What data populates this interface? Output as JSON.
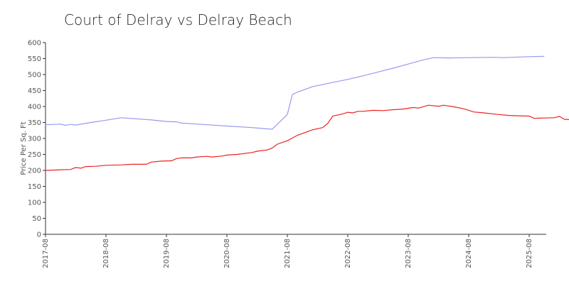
{
  "chart_data": {
    "type": "line",
    "title": "Court of Delray vs Delray Beach",
    "xlabel": "",
    "ylabel": "Price Per Sq. Ft",
    "ylim": [
      0,
      600
    ],
    "yticks": [
      0,
      50,
      100,
      150,
      200,
      250,
      300,
      350,
      400,
      450,
      500,
      550,
      600
    ],
    "x_ticks": [
      "2017-08",
      "2018-08",
      "2019-08",
      "2020-08",
      "2021-08",
      "2022-08",
      "2023-08",
      "2024-08",
      "2025-08"
    ],
    "x_range": [
      "2017-08",
      "2025-12"
    ],
    "grid": false,
    "legend": "none",
    "series": [
      {
        "color": "#9999ee",
        "points": [
          [
            "2017-08",
            343
          ],
          [
            "2017-11",
            345
          ],
          [
            "2017-12",
            341
          ],
          [
            "2018-01",
            344
          ],
          [
            "2018-02",
            342
          ],
          [
            "2018-05",
            350
          ],
          [
            "2018-08",
            357
          ],
          [
            "2018-11",
            365
          ],
          [
            "2019-05",
            358
          ],
          [
            "2019-08",
            353
          ],
          [
            "2019-10",
            352
          ],
          [
            "2019-11",
            348
          ],
          [
            "2020-03",
            344
          ],
          [
            "2020-08",
            339
          ],
          [
            "2021-01",
            334
          ],
          [
            "2021-04",
            330
          ],
          [
            "2021-05",
            329
          ],
          [
            "2021-08",
            375
          ],
          [
            "2021-09",
            438
          ],
          [
            "2021-10",
            445
          ],
          [
            "2022-01",
            462
          ],
          [
            "2022-04",
            472
          ],
          [
            "2022-08",
            485
          ],
          [
            "2022-11",
            496
          ],
          [
            "2023-02",
            508
          ],
          [
            "2023-05",
            520
          ],
          [
            "2023-08",
            533
          ],
          [
            "2023-11",
            546
          ],
          [
            "2024-01",
            553
          ],
          [
            "2024-04",
            552
          ],
          [
            "2024-08",
            553
          ],
          [
            "2025-01",
            554
          ],
          [
            "2025-03",
            553
          ],
          [
            "2025-06",
            555
          ],
          [
            "2025-08",
            556
          ],
          [
            "2025-11",
            557
          ]
        ]
      },
      {
        "color": "#ee2222",
        "points": [
          [
            "2017-08",
            200
          ],
          [
            "2017-11",
            202
          ],
          [
            "2018-01",
            203
          ],
          [
            "2018-02",
            209
          ],
          [
            "2018-03",
            207
          ],
          [
            "2018-04",
            212
          ],
          [
            "2018-06",
            213
          ],
          [
            "2018-08",
            216
          ],
          [
            "2018-11",
            217
          ],
          [
            "2019-01",
            219
          ],
          [
            "2019-04",
            219
          ],
          [
            "2019-05",
            226
          ],
          [
            "2019-07",
            229
          ],
          [
            "2019-09",
            230
          ],
          [
            "2019-10",
            237
          ],
          [
            "2019-11",
            239
          ],
          [
            "2020-01",
            239
          ],
          [
            "2020-02",
            242
          ],
          [
            "2020-04",
            244
          ],
          [
            "2020-05",
            242
          ],
          [
            "2020-07",
            245
          ],
          [
            "2020-08",
            248
          ],
          [
            "2020-10",
            250
          ],
          [
            "2021-01",
            256
          ],
          [
            "2021-02",
            260
          ],
          [
            "2021-04",
            264
          ],
          [
            "2021-05",
            270
          ],
          [
            "2021-06",
            282
          ],
          [
            "2021-08",
            293
          ],
          [
            "2021-10",
            310
          ],
          [
            "2022-01",
            327
          ],
          [
            "2022-03",
            334
          ],
          [
            "2022-04",
            347
          ],
          [
            "2022-05",
            370
          ],
          [
            "2022-07",
            377
          ],
          [
            "2022-08",
            382
          ],
          [
            "2022-09",
            380
          ],
          [
            "2022-10",
            385
          ],
          [
            "2022-11",
            385
          ],
          [
            "2023-01",
            388
          ],
          [
            "2023-03",
            387
          ],
          [
            "2023-05",
            390
          ],
          [
            "2023-07",
            392
          ],
          [
            "2023-09",
            397
          ],
          [
            "2023-10",
            395
          ],
          [
            "2023-12",
            404
          ],
          [
            "2024-02",
            401
          ],
          [
            "2024-03",
            404
          ],
          [
            "2024-05",
            399
          ],
          [
            "2024-07",
            393
          ],
          [
            "2024-09",
            383
          ],
          [
            "2024-11",
            380
          ],
          [
            "2025-02",
            375
          ],
          [
            "2025-04",
            372
          ],
          [
            "2025-06",
            371
          ],
          [
            "2025-08",
            370
          ],
          [
            "2025-09",
            363
          ],
          [
            "2025-11",
            364
          ],
          [
            "2026-01",
            365
          ],
          [
            "2026-02",
            369
          ],
          [
            "2026-03",
            360
          ],
          [
            "2026-05",
            358
          ],
          [
            "2026-06",
            345
          ]
        ]
      }
    ]
  }
}
